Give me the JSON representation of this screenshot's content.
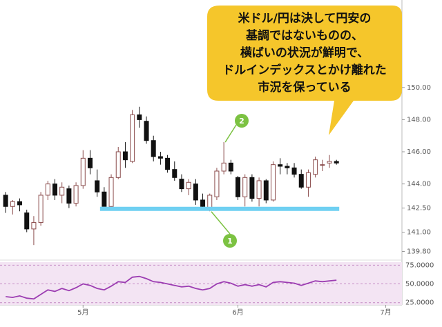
{
  "chart_data": [
    {
      "type": "candlestick",
      "xlim": [
        -0.8,
        56.3
      ],
      "xticks": [
        {
          "value": 11,
          "label": "5月"
        },
        {
          "value": 33,
          "label": "6月"
        },
        {
          "value": 54,
          "label": "7月"
        }
      ],
      "ylim": [
        139.35,
        151.15
      ],
      "yticks": [
        {
          "value": 150,
          "label": "150.00"
        },
        {
          "value": 148,
          "label": "148.00"
        },
        {
          "value": 146,
          "label": "146.00"
        },
        {
          "value": 144,
          "label": "144.00"
        },
        {
          "value": 142.5,
          "label": "142.50"
        },
        {
          "value": 141,
          "label": "141.00"
        },
        {
          "value": 139.8,
          "label": "139.80"
        }
      ],
      "up_color": "#ffffff",
      "up_edge": "#8a4b4b",
      "down_color": "#111111",
      "open": [
        143.3,
        142.6,
        142.9,
        142.2,
        141.2,
        141.6,
        143.3,
        144.0,
        143.3,
        143.7,
        142.8,
        143.9,
        145.6,
        144.2,
        143.5,
        142.6,
        144.4,
        146.0,
        145.4,
        148.3,
        147.9,
        146.7,
        145.7,
        145.6,
        144.9,
        144.3,
        143.7,
        144.0,
        143.0,
        142.5,
        143.2,
        144.8,
        145.3,
        144.4,
        143.2,
        144.4,
        143.1,
        144.2,
        143.0,
        145.2,
        145.1,
        145.0,
        144.6,
        143.8,
        144.6,
        145.2,
        145.3,
        145.4
      ],
      "high": [
        143.5,
        143.0,
        143.1,
        142.4,
        142.0,
        143.5,
        144.2,
        144.3,
        144.1,
        143.9,
        144.1,
        146.1,
        146.1,
        144.9,
        143.8,
        144.6,
        146.3,
        146.6,
        148.6,
        148.8,
        148.2,
        147.0,
        146.0,
        145.8,
        145.4,
        144.6,
        144.3,
        144.3,
        143.4,
        143.4,
        145.0,
        146.6,
        145.5,
        144.5,
        144.6,
        144.6,
        144.4,
        144.3,
        145.4,
        145.6,
        145.3,
        145.3,
        144.9,
        144.9,
        145.7,
        145.5,
        145.8,
        145.5
      ],
      "low": [
        142.2,
        142.1,
        142.3,
        141.0,
        140.2,
        141.4,
        143.0,
        143.0,
        142.8,
        142.5,
        142.6,
        143.7,
        144.6,
        143.2,
        142.6,
        142.5,
        144.3,
        145.0,
        145.3,
        147.5,
        146.5,
        145.4,
        145.2,
        144.7,
        144.2,
        143.5,
        143.3,
        142.7,
        142.4,
        142.3,
        143.0,
        144.6,
        144.6,
        143.0,
        142.6,
        142.9,
        142.6,
        142.8,
        142.9,
        144.6,
        144.6,
        144.4,
        143.7,
        143.2,
        144.4,
        144.8,
        145.0,
        145.2
      ],
      "close": [
        142.6,
        142.9,
        142.7,
        141.2,
        141.6,
        143.3,
        144.0,
        143.3,
        143.8,
        142.8,
        143.9,
        145.6,
        145.0,
        143.5,
        142.6,
        144.4,
        146.0,
        145.5,
        148.3,
        148.0,
        146.7,
        145.7,
        145.6,
        144.9,
        144.4,
        143.7,
        144.1,
        143.0,
        142.6,
        143.3,
        144.8,
        145.3,
        144.8,
        143.2,
        144.4,
        143.1,
        144.2,
        143.0,
        145.2,
        145.1,
        145.0,
        144.6,
        143.8,
        144.7,
        145.5,
        145.2,
        145.4,
        145.3
      ],
      "support_level": 142.45,
      "support_color": "#6fd0f2",
      "markers": [
        {
          "label": "1"
        },
        {
          "label": "2"
        }
      ],
      "marker_color": "#7cc242",
      "callout": [
        "米ドル/円は決して円安の",
        "基調ではないものの、",
        "横ばいの状況が鮮明で、",
        "ドルインデックスとかけ離れた",
        "市況を保っている"
      ],
      "callout_color": "#f5c62b"
    },
    {
      "type": "line",
      "ylim": [
        22,
        79
      ],
      "yticks": [
        {
          "value": 75,
          "label": "75.0000"
        },
        {
          "value": 50,
          "label": "50.0000"
        },
        {
          "value": 25,
          "label": "25.0000"
        }
      ],
      "color": "#9c3db2",
      "background": "#f3e4f3",
      "values": [
        33,
        32,
        34,
        31,
        30,
        36,
        42,
        40,
        44,
        41,
        45,
        50,
        48,
        44,
        42,
        47,
        53,
        52,
        59,
        60,
        57,
        53,
        52,
        50,
        48,
        46,
        47,
        44,
        42,
        44,
        50,
        53,
        51,
        47,
        49,
        47,
        49,
        46,
        52,
        53,
        52,
        51,
        48,
        51,
        54,
        53,
        54,
        55
      ]
    }
  ]
}
